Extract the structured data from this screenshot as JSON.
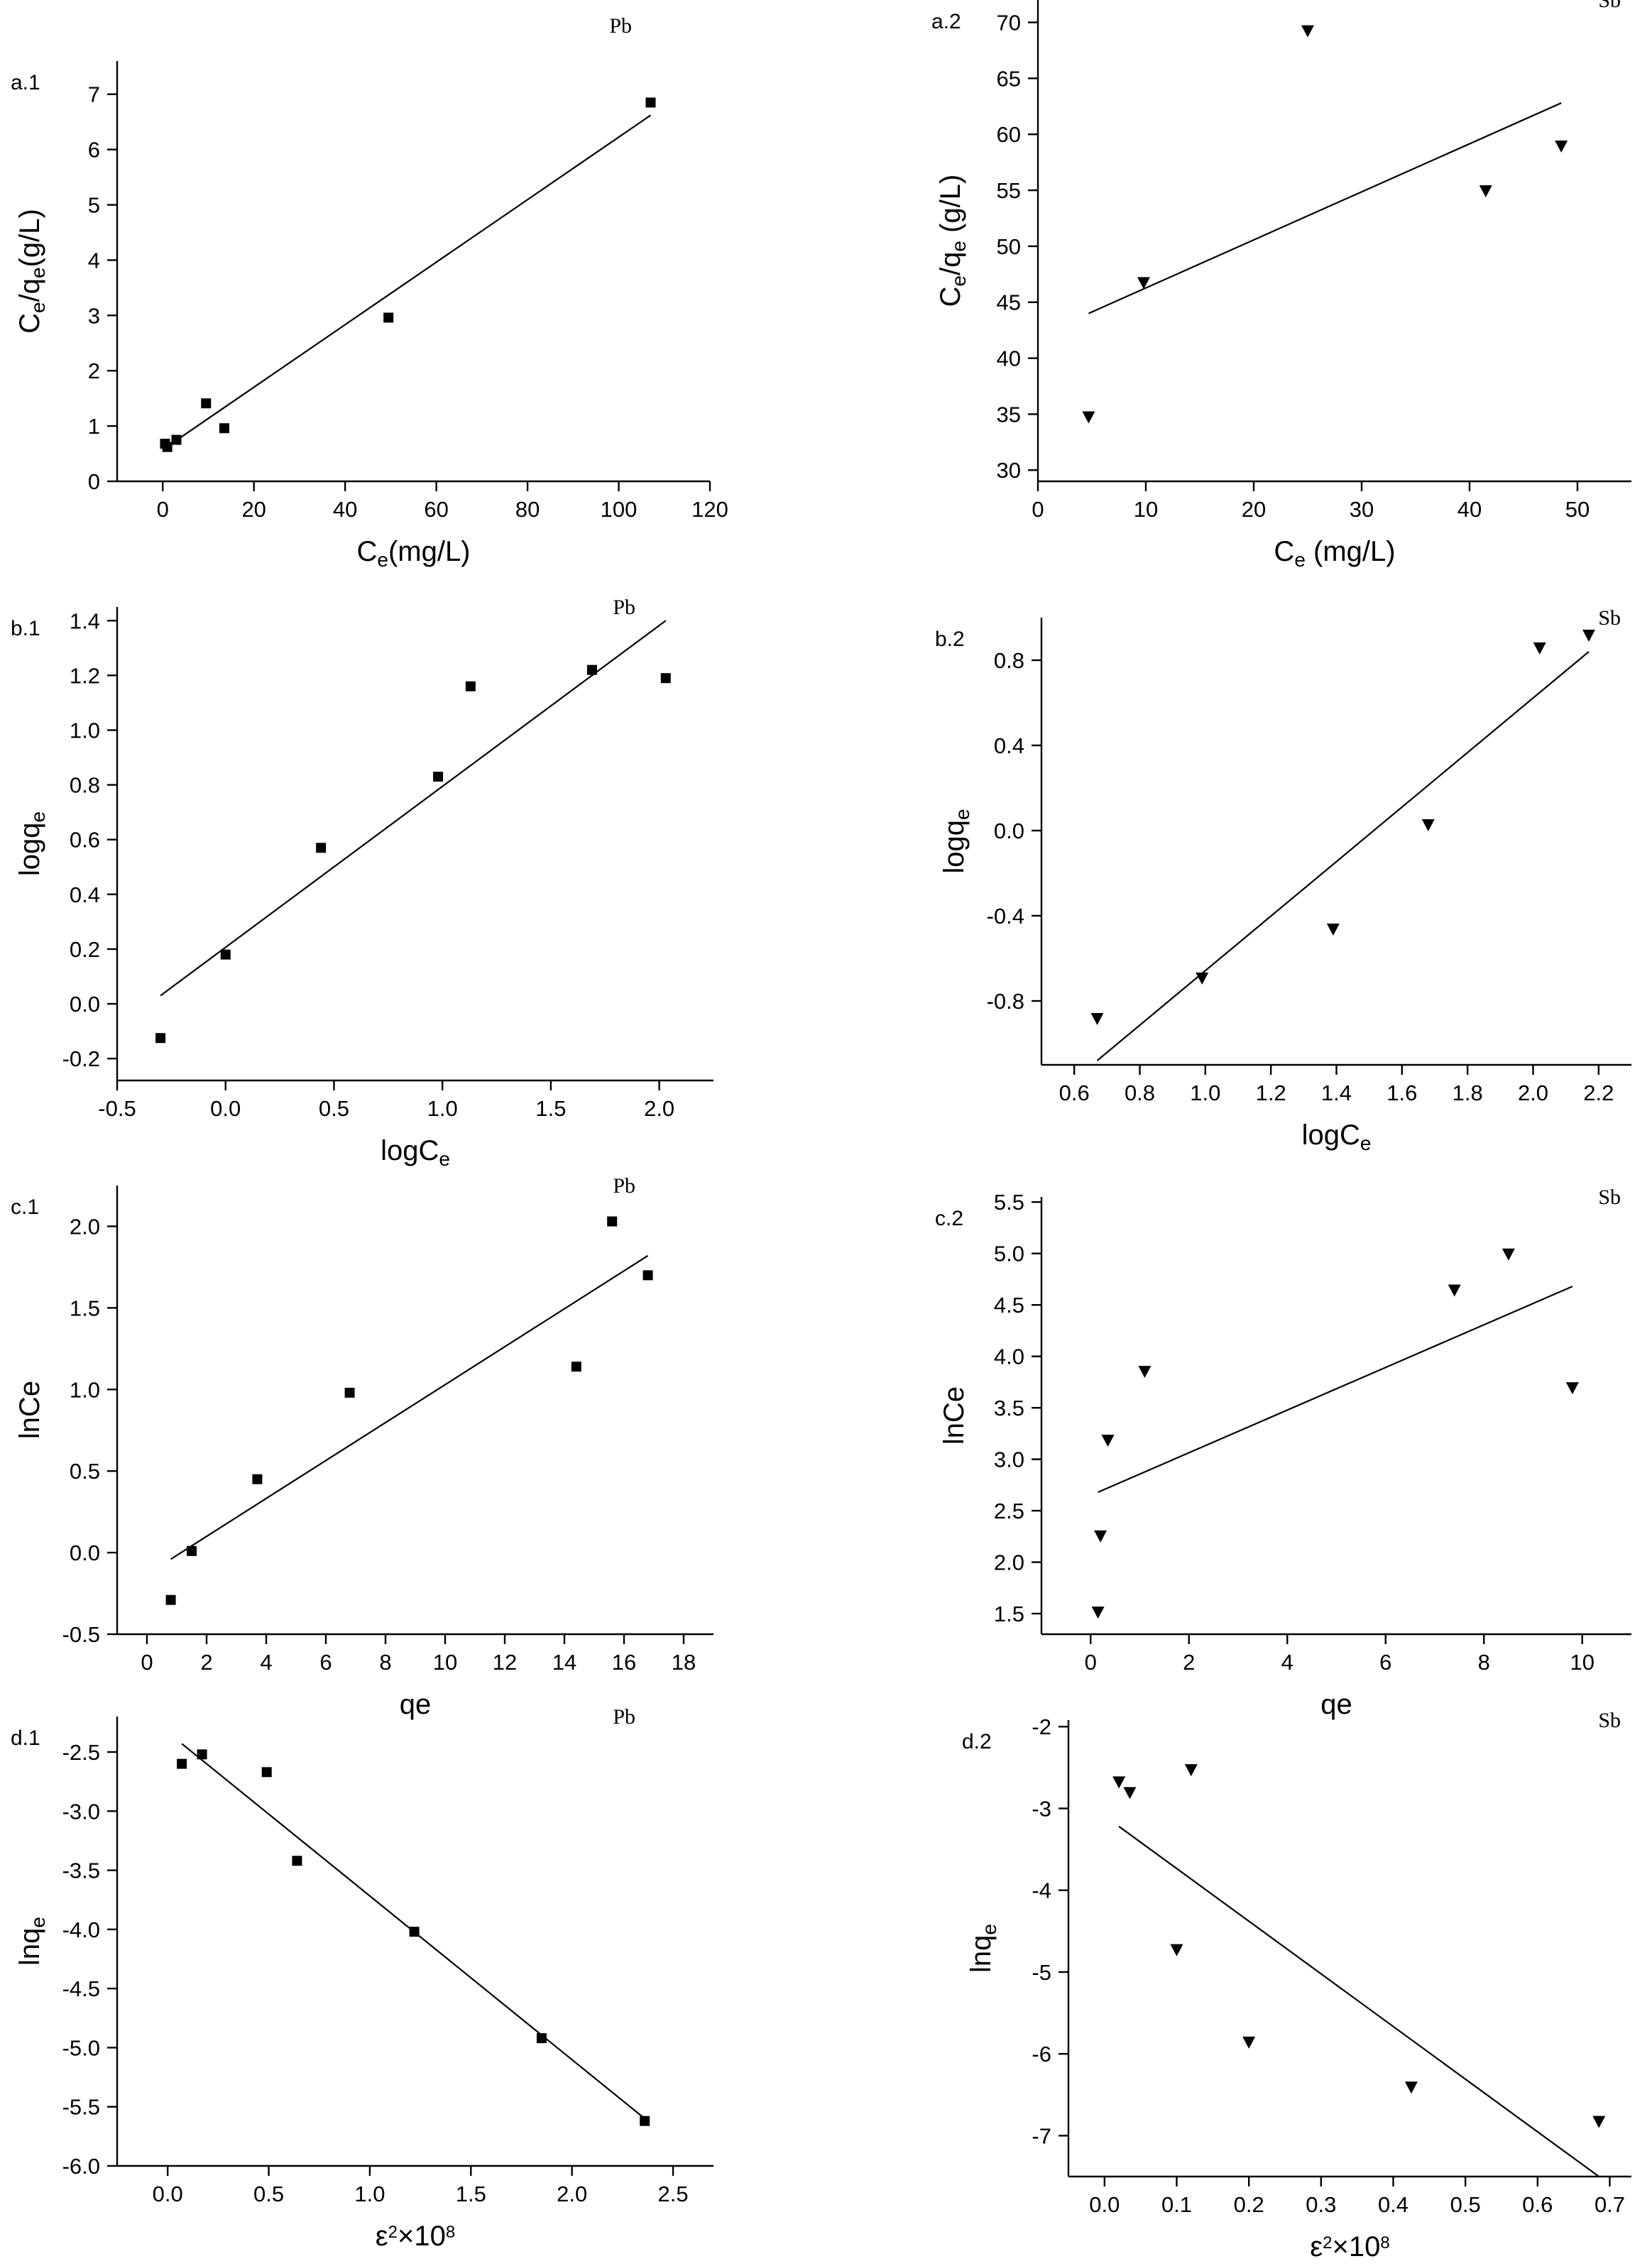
{
  "chart_data": [
    {
      "id": "a1",
      "type": "scatter",
      "panel_label": "a.1",
      "element": "Pb",
      "marker": "square",
      "x": [
        0.5,
        1.0,
        3.0,
        9.5,
        13.5,
        49.5,
        107.0
      ],
      "y": [
        0.68,
        0.62,
        0.75,
        1.41,
        0.96,
        2.96,
        6.85
      ],
      "fit": {
        "x": [
          0.5,
          107.0
        ],
        "y": [
          0.6,
          6.62
        ]
      },
      "xlim": [
        -10,
        120
      ],
      "ylim": [
        0,
        7.6
      ],
      "xticks": [
        0,
        20,
        40,
        60,
        80,
        100,
        120
      ],
      "yticks": [
        0,
        1,
        2,
        3,
        4,
        5,
        6,
        7
      ],
      "xlabel": {
        "base": "C",
        "sub": "e",
        "rest": "(mg/L)"
      },
      "ylabel": {
        "base": "C",
        "sub": "e",
        "rest": "/q",
        "sub2": "e",
        "rest2": "(g/L)"
      }
    },
    {
      "id": "a2",
      "type": "scatter",
      "panel_label": "a.2",
      "element": "Sb",
      "marker": "triangle-down",
      "x": [
        4.7,
        9.8,
        25.0,
        41.5,
        48.5
      ],
      "y": [
        34.8,
        46.8,
        69.3,
        55.0,
        59.0
      ],
      "fit": {
        "x": [
          4.7,
          48.5
        ],
        "y": [
          44.0,
          62.8
        ]
      },
      "xlim": [
        0,
        55
      ],
      "ylim": [
        29,
        72
      ],
      "xticks": [
        0,
        10,
        20,
        30,
        40,
        50
      ],
      "yticks": [
        30,
        35,
        40,
        45,
        50,
        55,
        60,
        65,
        70
      ],
      "xlabel": {
        "base": "C",
        "sub": "e",
        "rest": " (mg/L)"
      },
      "ylabel": {
        "base": "C",
        "sub": "e",
        "rest": "/q",
        "sub2": "e",
        "rest2": " (g/L)"
      }
    },
    {
      "id": "b1",
      "type": "scatter",
      "panel_label": "b.1",
      "element": "Pb",
      "marker": "square",
      "x": [
        -0.3,
        0.0,
        0.44,
        0.98,
        1.13,
        1.69,
        2.03
      ],
      "y": [
        -0.125,
        0.18,
        0.57,
        0.83,
        1.16,
        1.22,
        1.19
      ],
      "fit": {
        "x": [
          -0.3,
          2.03
        ],
        "y": [
          0.03,
          1.4
        ]
      },
      "xlim": [
        -0.5,
        2.25
      ],
      "ylim": [
        -0.28,
        1.45
      ],
      "xticks": [
        -0.5,
        0.0,
        0.5,
        1.0,
        1.5,
        2.0
      ],
      "yticks": [
        -0.2,
        0.0,
        0.2,
        0.4,
        0.6,
        0.8,
        1.0,
        1.2,
        1.4
      ],
      "xlabel": {
        "base": "logC",
        "sub": "e"
      },
      "ylabel": {
        "base": "logq",
        "sub": "e"
      }
    },
    {
      "id": "b2",
      "type": "scatter",
      "panel_label": "b.2",
      "element": "Sb",
      "marker": "triangle-down",
      "x": [
        0.67,
        0.99,
        1.39,
        1.68,
        2.02,
        2.17
      ],
      "y": [
        -0.88,
        -0.69,
        -0.46,
        0.03,
        0.86,
        0.92
      ],
      "fit": {
        "x": [
          0.67,
          2.17
        ],
        "y": [
          -1.08,
          0.84
        ]
      },
      "xlim": [
        0.5,
        2.3
      ],
      "ylim": [
        -1.1,
        1.0
      ],
      "xticks": [
        0.6,
        0.8,
        1.0,
        1.2,
        1.4,
        1.6,
        1.8,
        2.0,
        2.2
      ],
      "yticks": [
        -0.8,
        -0.4,
        0.0,
        0.4,
        0.8
      ],
      "xlabel": {
        "base": "logC",
        "sub": "e"
      },
      "ylabel": {
        "base": "logq",
        "sub": "e"
      }
    },
    {
      "id": "c1",
      "type": "scatter",
      "panel_label": "c.1",
      "element": "Pb",
      "marker": "square",
      "x": [
        0.8,
        1.5,
        3.7,
        6.8,
        14.4,
        15.6,
        16.8
      ],
      "y": [
        -0.29,
        0.01,
        0.45,
        0.98,
        1.14,
        2.03,
        1.7
      ],
      "fit": {
        "x": [
          0.8,
          16.8
        ],
        "y": [
          -0.04,
          1.82
        ]
      },
      "xlim": [
        -1,
        19
      ],
      "ylim": [
        -0.5,
        2.25
      ],
      "xticks": [
        0,
        2,
        4,
        6,
        8,
        10,
        12,
        14,
        16,
        18
      ],
      "yticks": [
        -0.5,
        0.0,
        0.5,
        1.0,
        1.5,
        2.0
      ],
      "xlabel": {
        "base": "qe"
      },
      "ylabel": {
        "base": "lnCe"
      }
    },
    {
      "id": "c2",
      "type": "scatter",
      "panel_label": "c.2",
      "element": "Sb",
      "marker": "triangle-down",
      "x": [
        0.15,
        0.2,
        0.35,
        1.1,
        7.4,
        8.5,
        9.8
      ],
      "y": [
        1.52,
        2.26,
        3.19,
        3.86,
        4.65,
        5.0,
        3.7
      ],
      "fit": {
        "x": [
          0.15,
          9.8
        ],
        "y": [
          2.68,
          4.68
        ]
      },
      "xlim": [
        -1,
        11
      ],
      "ylim": [
        1.3,
        5.55
      ],
      "xticks": [
        0,
        2,
        4,
        6,
        8,
        10
      ],
      "yticks": [
        1.5,
        2.0,
        2.5,
        3.0,
        3.5,
        4.0,
        4.5,
        5.0,
        5.5
      ],
      "xlabel": {
        "base": "qe"
      },
      "ylabel": {
        "base": "lnCe"
      }
    },
    {
      "id": "d1",
      "type": "scatter",
      "panel_label": "d.1",
      "element": "Pb",
      "marker": "square",
      "x": [
        0.07,
        0.17,
        0.49,
        0.64,
        1.22,
        1.85,
        2.36
      ],
      "y": [
        -2.6,
        -2.52,
        -2.67,
        -3.42,
        -4.02,
        -4.92,
        -5.62
      ],
      "fit": {
        "x": [
          0.07,
          2.36
        ],
        "y": [
          -2.43,
          -5.6
        ]
      },
      "xlim": [
        -0.25,
        2.7
      ],
      "ylim": [
        -6.0,
        -2.2
      ],
      "xticks": [
        0.0,
        0.5,
        1.0,
        1.5,
        2.0,
        2.5
      ],
      "yticks": [
        -6.0,
        -5.5,
        -5.0,
        -4.5,
        -4.0,
        -3.5,
        -3.0,
        -2.5
      ],
      "xlabel": {
        "base": "ε",
        "sup": "2",
        "rest": "×10",
        "sup2": "8"
      },
      "ylabel": {
        "base": "lnq",
        "sub": "e"
      }
    },
    {
      "id": "d2",
      "type": "scatter",
      "panel_label": "d.2",
      "element": "Sb",
      "marker": "triangle-down",
      "x": [
        0.02,
        0.035,
        0.1,
        0.12,
        0.2,
        0.425,
        0.685
      ],
      "y": [
        -2.67,
        -2.8,
        -4.72,
        -2.52,
        -5.85,
        -6.4,
        -6.82
      ],
      "fit": {
        "x": [
          0.02,
          0.685
        ],
        "y": [
          -3.22,
          -7.5
        ]
      },
      "xlim": [
        -0.05,
        0.73
      ],
      "ylim": [
        -7.5,
        -1.92
      ],
      "xticks": [
        0.0,
        0.1,
        0.2,
        0.3,
        0.4,
        0.5,
        0.6,
        0.7
      ],
      "yticks": [
        -7,
        -6,
        -5,
        -4,
        -3,
        -2
      ],
      "xlabel": {
        "base": "ε",
        "sup": "2",
        "rest": "×10",
        "sup2": "8"
      },
      "ylabel": {
        "base": "lnq",
        "sub": "e"
      }
    }
  ]
}
